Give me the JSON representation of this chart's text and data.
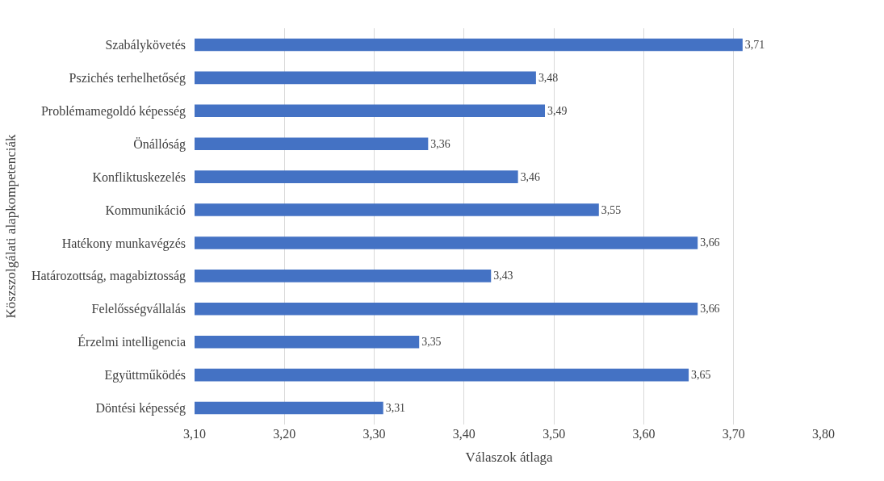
{
  "chart_data": {
    "type": "bar",
    "orientation": "horizontal",
    "categories": [
      "Szabálykövetés",
      "Pszichés terhelhetőség",
      "Problémamegoldó képesség",
      "Önállóság",
      "Konfliktuskezelés",
      "Kommunikáció",
      "Hatékony munkavégzés",
      "Határozottság, magabiztosság",
      "Felelősségvállalás",
      "Érzelmi intelligencia",
      "Együttműködés",
      "Döntési képesség"
    ],
    "values": [
      3.71,
      3.48,
      3.49,
      3.36,
      3.46,
      3.55,
      3.66,
      3.43,
      3.66,
      3.35,
      3.65,
      3.31
    ],
    "value_labels": [
      "3,71",
      "3,48",
      "3,49",
      "3,36",
      "3,46",
      "3,55",
      "3,66",
      "3,43",
      "3,66",
      "3,35",
      "3,65",
      "3,31"
    ],
    "color": "#4472c4",
    "xlabel": "Válaszok átlaga",
    "ylabel": "Köszszolgálati alapkompetenciák",
    "xlim": [
      3.1,
      3.8
    ],
    "xticks": [
      {
        "value": 3.1,
        "label": "3,10"
      },
      {
        "value": 3.2,
        "label": "3,20"
      },
      {
        "value": 3.3,
        "label": "3,30"
      },
      {
        "value": 3.4,
        "label": "3,40"
      },
      {
        "value": 3.5,
        "label": "3,50"
      },
      {
        "value": 3.6,
        "label": "3,60"
      },
      {
        "value": 3.7,
        "label": "3,70"
      },
      {
        "value": 3.8,
        "label": "3,80"
      }
    ],
    "grid": "x",
    "legend": false
  }
}
